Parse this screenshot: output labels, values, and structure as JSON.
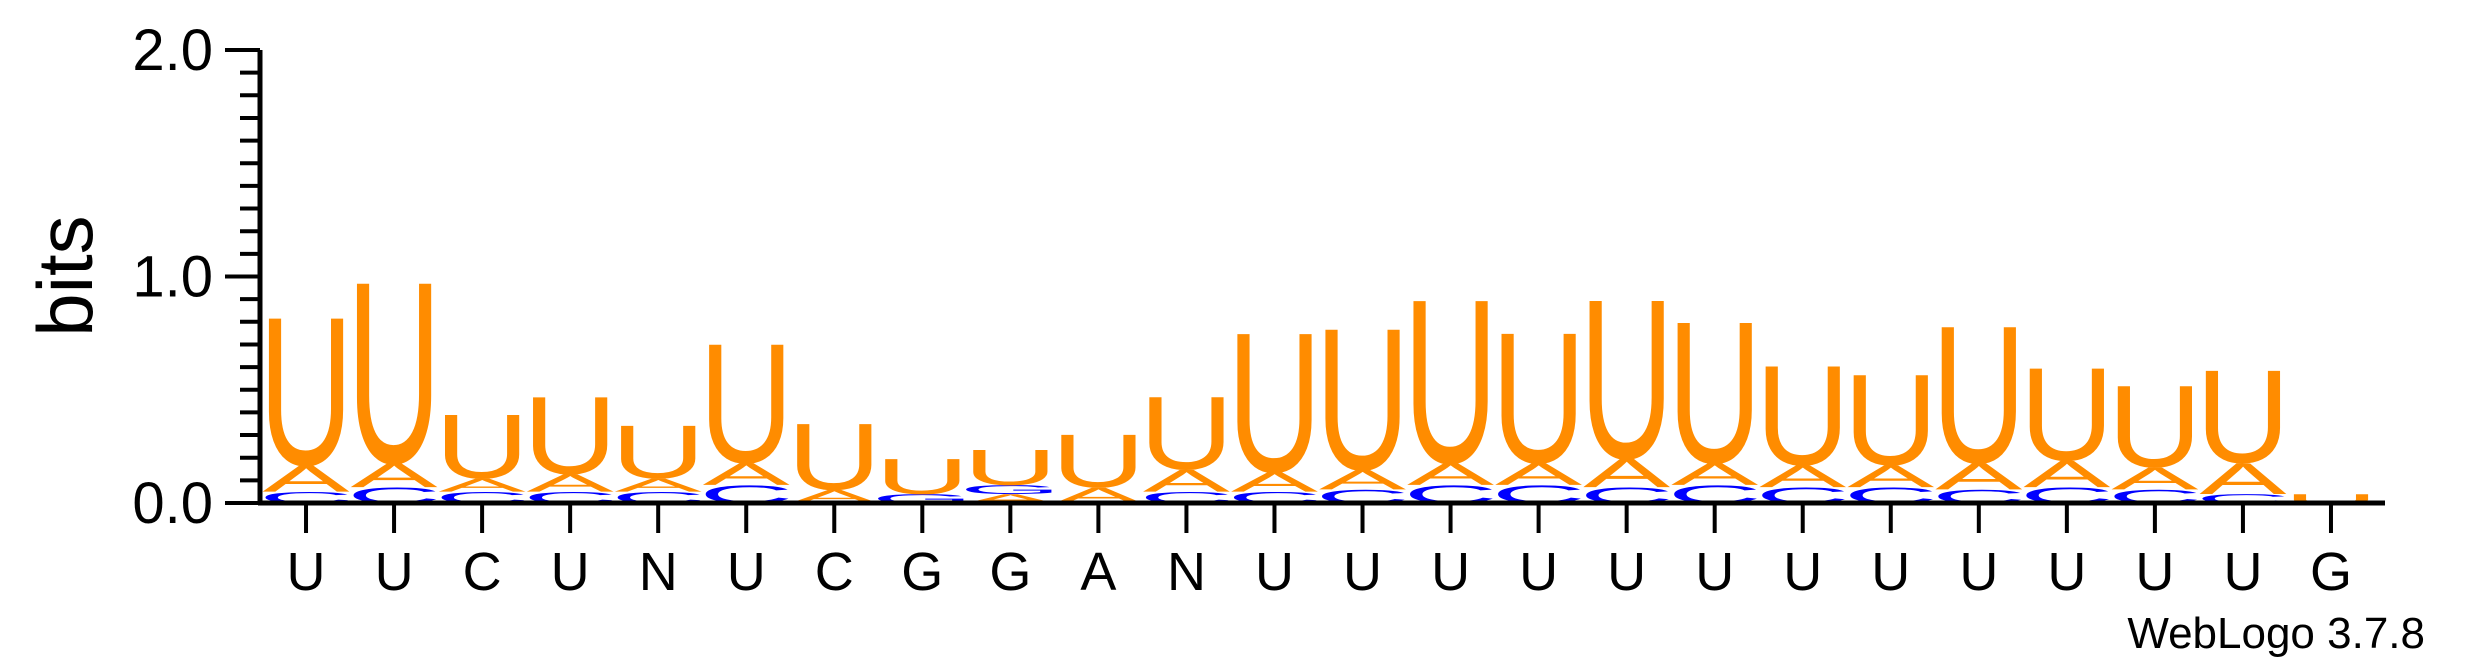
{
  "chart_data": {
    "type": "sequence-logo",
    "ylabel": "bits",
    "ylim": [
      0,
      2.0
    ],
    "y_ticks": [
      {
        "value": 0.0,
        "label": "0.0"
      },
      {
        "value": 1.0,
        "label": "1.0"
      },
      {
        "value": 2.0,
        "label": "2.0"
      }
    ],
    "positions": [
      "U",
      "U",
      "C",
      "U",
      "N",
      "U",
      "C",
      "G",
      "G",
      "A",
      "N",
      "U",
      "U",
      "U",
      "U",
      "U",
      "U",
      "U",
      "U",
      "U",
      "U",
      "U",
      "U",
      "G"
    ],
    "stacks": [
      [
        {
          "letter": "C",
          "bits": 0.05
        },
        {
          "letter": "A",
          "bits": 0.12
        },
        {
          "letter": "U",
          "bits": 0.67
        }
      ],
      [
        {
          "letter": "C",
          "bits": 0.07
        },
        {
          "letter": "A",
          "bits": 0.11
        },
        {
          "letter": "U",
          "bits": 0.82
        }
      ],
      [
        {
          "letter": "C",
          "bits": 0.05
        },
        {
          "letter": "A",
          "bits": 0.06
        },
        {
          "letter": "U",
          "bits": 0.29
        }
      ],
      [
        {
          "letter": "C",
          "bits": 0.05
        },
        {
          "letter": "A",
          "bits": 0.08
        },
        {
          "letter": "U",
          "bits": 0.35
        }
      ],
      [
        {
          "letter": "C",
          "bits": 0.05
        },
        {
          "letter": "A",
          "bits": 0.06
        },
        {
          "letter": "U",
          "bits": 0.24
        }
      ],
      [
        {
          "letter": "C",
          "bits": 0.08
        },
        {
          "letter": "A",
          "bits": 0.1
        },
        {
          "letter": "U",
          "bits": 0.54
        }
      ],
      [
        {
          "letter": "A",
          "bits": 0.06
        },
        {
          "letter": "U",
          "bits": 0.3
        }
      ],
      [
        {
          "letter": "G",
          "bits": 0.04
        },
        {
          "letter": "U",
          "bits": 0.16
        }
      ],
      [
        {
          "letter": "A",
          "bits": 0.04
        },
        {
          "letter": "G",
          "bits": 0.04
        },
        {
          "letter": "U",
          "bits": 0.16
        }
      ],
      [
        {
          "letter": "A",
          "bits": 0.07
        },
        {
          "letter": "U",
          "bits": 0.24
        }
      ],
      [
        {
          "letter": "C",
          "bits": 0.05
        },
        {
          "letter": "A",
          "bits": 0.1
        },
        {
          "letter": "U",
          "bits": 0.33
        }
      ],
      [
        {
          "letter": "C",
          "bits": 0.05
        },
        {
          "letter": "A",
          "bits": 0.09
        },
        {
          "letter": "U",
          "bits": 0.63
        }
      ],
      [
        {
          "letter": "C",
          "bits": 0.06
        },
        {
          "letter": "A",
          "bits": 0.09
        },
        {
          "letter": "U",
          "bits": 0.64
        }
      ],
      [
        {
          "letter": "C",
          "bits": 0.08
        },
        {
          "letter": "A",
          "bits": 0.1
        },
        {
          "letter": "U",
          "bits": 0.74
        }
      ],
      [
        {
          "letter": "C",
          "bits": 0.08
        },
        {
          "letter": "A",
          "bits": 0.1
        },
        {
          "letter": "U",
          "bits": 0.59
        }
      ],
      [
        {
          "letter": "C",
          "bits": 0.07
        },
        {
          "letter": "A",
          "bits": 0.13
        },
        {
          "letter": "U",
          "bits": 0.72
        }
      ],
      [
        {
          "letter": "C",
          "bits": 0.08
        },
        {
          "letter": "A",
          "bits": 0.1
        },
        {
          "letter": "U",
          "bits": 0.64
        }
      ],
      [
        {
          "letter": "C",
          "bits": 0.07
        },
        {
          "letter": "A",
          "bits": 0.1
        },
        {
          "letter": "U",
          "bits": 0.45
        }
      ],
      [
        {
          "letter": "C",
          "bits": 0.07
        },
        {
          "letter": "A",
          "bits": 0.1
        },
        {
          "letter": "U",
          "bits": 0.41
        }
      ],
      [
        {
          "letter": "C",
          "bits": 0.06
        },
        {
          "letter": "A",
          "bits": 0.12
        },
        {
          "letter": "U",
          "bits": 0.62
        }
      ],
      [
        {
          "letter": "C",
          "bits": 0.07
        },
        {
          "letter": "A",
          "bits": 0.12
        },
        {
          "letter": "U",
          "bits": 0.42
        }
      ],
      [
        {
          "letter": "C",
          "bits": 0.06
        },
        {
          "letter": "A",
          "bits": 0.1
        },
        {
          "letter": "U",
          "bits": 0.37
        }
      ],
      [
        {
          "letter": "C",
          "bits": 0.04
        },
        {
          "letter": "A",
          "bits": 0.14
        },
        {
          "letter": "U",
          "bits": 0.42
        }
      ],
      [
        {
          "letter": "U",
          "bits": 0.04
        }
      ]
    ],
    "colors": {
      "U": "#ff8c00",
      "A": "#ff8c00",
      "C": "#0000ff",
      "G": "#0000ff"
    },
    "grid": false,
    "legend": "none"
  },
  "footer": {
    "credit": "WebLogo 3.7.8"
  }
}
